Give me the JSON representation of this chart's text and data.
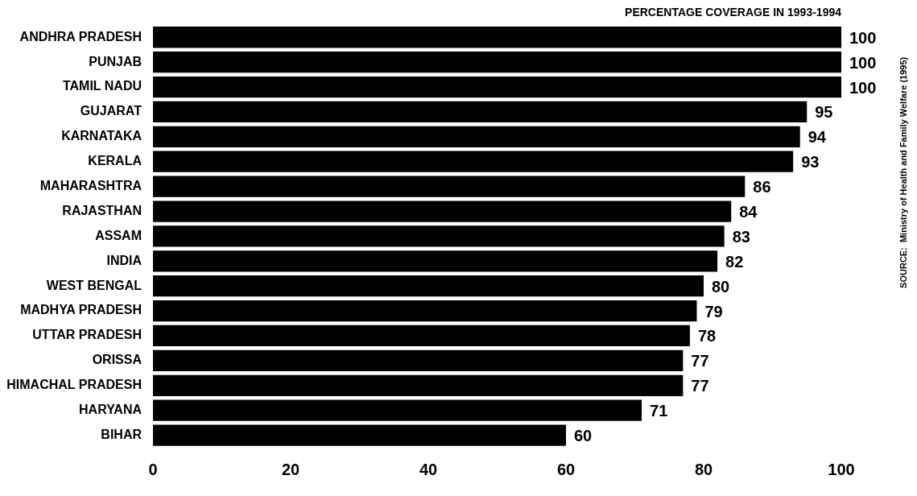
{
  "chart_data": {
    "type": "bar",
    "orientation": "horizontal",
    "title": "PERCENTAGE COVERAGE IN 1993-1994",
    "categories": [
      "ANDHRA PRADESH",
      "PUNJAB",
      "TAMIL NADU",
      "GUJARAT",
      "KARNATAKA",
      "KERALA",
      "MAHARASHTRA",
      "RAJASTHAN",
      "ASSAM",
      "INDIA",
      "WEST BENGAL",
      "MADHYA PRADESH",
      "UTTAR PRADESH",
      "ORISSA",
      "HIMACHAL PRADESH",
      "HARYANA",
      "BIHAR"
    ],
    "values": [
      100,
      100,
      100,
      95,
      94,
      93,
      86,
      84,
      83,
      82,
      80,
      79,
      78,
      77,
      77,
      71,
      60
    ],
    "color": "#000000",
    "xlim": [
      0,
      100
    ],
    "xticks": [
      0,
      20,
      40,
      60,
      80,
      100
    ],
    "grid": false,
    "legend": false,
    "data_labels": true,
    "annotations": [
      "SOURCE:  Ministry of Health and Family Welfare (1995)"
    ]
  }
}
